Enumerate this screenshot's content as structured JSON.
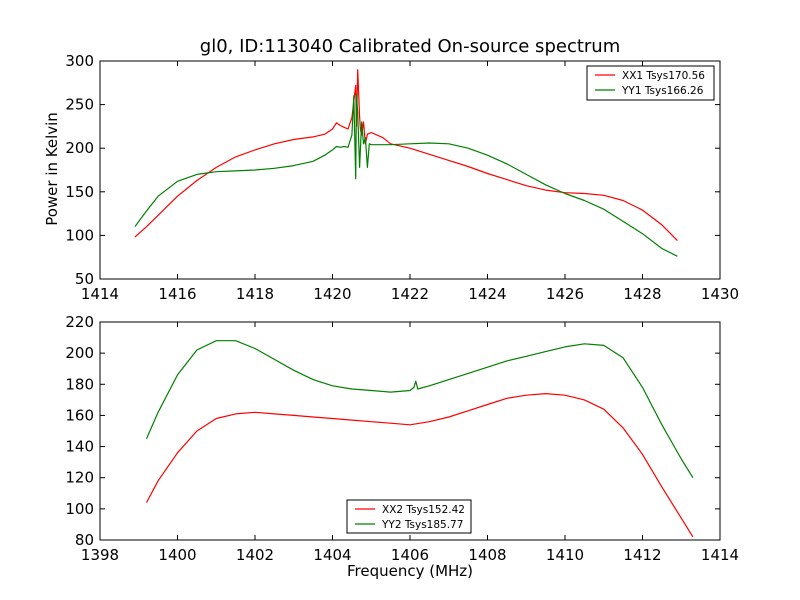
{
  "chart_data": [
    {
      "type": "line",
      "title": "gl0, ID:113040 Calibrated On-source spectrum",
      "xlabel": "",
      "ylabel": "Power in Kelvin",
      "xlim": [
        1414,
        1430
      ],
      "ylim": [
        50,
        300
      ],
      "xticks": [
        1414,
        1416,
        1418,
        1420,
        1422,
        1424,
        1426,
        1428,
        1430
      ],
      "yticks": [
        50,
        100,
        150,
        200,
        250,
        300
      ],
      "legend_position": "top-right",
      "series": [
        {
          "name": "XX1 Tsys170.56",
          "color": "#ff0000",
          "x": [
            1414.9,
            1415.2,
            1415.5,
            1416.0,
            1416.5,
            1417.0,
            1417.5,
            1418.0,
            1418.5,
            1419.0,
            1419.5,
            1419.8,
            1420.0,
            1420.1,
            1420.2,
            1420.3,
            1420.4,
            1420.5,
            1420.6,
            1420.62,
            1420.65,
            1420.7,
            1420.72,
            1420.75,
            1420.8,
            1420.85,
            1420.9,
            1421.0,
            1421.3,
            1421.5,
            1422.0,
            1422.5,
            1423.0,
            1423.5,
            1424.0,
            1424.5,
            1425.0,
            1425.5,
            1426.0,
            1426.5,
            1427.0,
            1427.5,
            1428.0,
            1428.5,
            1428.9
          ],
          "y": [
            98,
            110,
            123,
            145,
            163,
            178,
            190,
            198,
            205,
            210,
            213,
            216,
            222,
            229,
            226,
            224,
            222,
            235,
            272,
            225,
            290,
            236,
            222,
            215,
            230,
            205,
            216,
            218,
            212,
            205,
            200,
            193,
            186,
            179,
            171,
            164,
            157,
            152,
            149,
            148,
            146,
            140,
            129,
            112,
            94
          ]
        },
        {
          "name": "YY1 Tsys166.26",
          "color": "#008000",
          "x": [
            1414.9,
            1415.2,
            1415.5,
            1416.0,
            1416.5,
            1417.0,
            1417.5,
            1418.0,
            1418.5,
            1419.0,
            1419.5,
            1419.8,
            1420.0,
            1420.1,
            1420.2,
            1420.3,
            1420.4,
            1420.5,
            1420.55,
            1420.6,
            1420.62,
            1420.65,
            1420.7,
            1420.75,
            1420.8,
            1420.85,
            1420.9,
            1420.95,
            1421.0,
            1421.5,
            1422.0,
            1422.5,
            1423.0,
            1423.5,
            1424.0,
            1424.5,
            1425.0,
            1425.5,
            1426.0,
            1426.5,
            1427.0,
            1427.5,
            1428.0,
            1428.5,
            1428.9
          ],
          "y": [
            110,
            128,
            145,
            162,
            170,
            173,
            174,
            175,
            177,
            180,
            185,
            192,
            198,
            202,
            201,
            202,
            201,
            215,
            260,
            165,
            262,
            240,
            178,
            230,
            205,
            212,
            178,
            205,
            204,
            204,
            205,
            206,
            205,
            200,
            192,
            182,
            170,
            158,
            148,
            140,
            130,
            116,
            102,
            85,
            76
          ]
        }
      ]
    },
    {
      "type": "line",
      "title": "",
      "xlabel": "Frequency (MHz)",
      "ylabel": "",
      "xlim": [
        1398,
        1414
      ],
      "ylim": [
        80,
        220
      ],
      "xticks": [
        1398,
        1400,
        1402,
        1404,
        1406,
        1408,
        1410,
        1412,
        1414
      ],
      "yticks": [
        80,
        100,
        120,
        140,
        160,
        180,
        200,
        220
      ],
      "legend_position": "bottom-center",
      "series": [
        {
          "name": "XX2 Tsys152.42",
          "color": "#ff0000",
          "x": [
            1399.2,
            1399.5,
            1400.0,
            1400.5,
            1401.0,
            1401.5,
            1402.0,
            1402.5,
            1403.0,
            1403.5,
            1404.0,
            1404.5,
            1405.0,
            1405.5,
            1406.0,
            1406.5,
            1407.0,
            1407.5,
            1408.0,
            1408.5,
            1409.0,
            1409.5,
            1410.0,
            1410.5,
            1411.0,
            1411.5,
            1412.0,
            1412.5,
            1413.0,
            1413.3
          ],
          "y": [
            104,
            118,
            136,
            150,
            158,
            161,
            162,
            161,
            160,
            159,
            158,
            157,
            156,
            155,
            154,
            156,
            159,
            163,
            167,
            171,
            173,
            174,
            173,
            170,
            164,
            152,
            135,
            114,
            94,
            82
          ]
        },
        {
          "name": "YY2 Tsys185.77",
          "color": "#008000",
          "x": [
            1399.2,
            1399.5,
            1400.0,
            1400.5,
            1401.0,
            1401.5,
            1402.0,
            1402.5,
            1403.0,
            1403.5,
            1404.0,
            1404.5,
            1405.0,
            1405.5,
            1406.0,
            1406.1,
            1406.15,
            1406.2,
            1406.5,
            1407.0,
            1407.5,
            1408.0,
            1408.5,
            1409.0,
            1409.5,
            1410.0,
            1410.5,
            1411.0,
            1411.5,
            1412.0,
            1412.5,
            1413.0,
            1413.3
          ],
          "y": [
            145,
            162,
            186,
            202,
            208,
            208,
            203,
            196,
            189,
            183,
            179,
            177,
            176,
            175,
            176,
            178,
            182,
            177,
            179,
            183,
            187,
            191,
            195,
            198,
            201,
            204,
            206,
            205,
            197,
            178,
            154,
            132,
            120
          ]
        }
      ]
    }
  ]
}
